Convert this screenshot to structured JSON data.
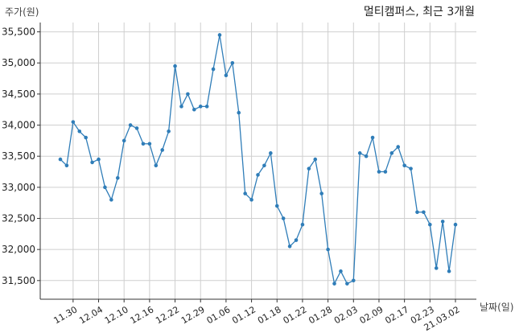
{
  "chart_data": {
    "type": "line",
    "title": "멀티캠퍼스, 최근 3개월",
    "ylabel": "주가(원)",
    "xlabel": "날짜(일)",
    "ylim": [
      31200,
      35650
    ],
    "yticks": [
      31500,
      32000,
      32500,
      33000,
      33500,
      34000,
      34500,
      35000,
      35500
    ],
    "ytick_labels": [
      "31,500",
      "32,000",
      "32,500",
      "33,000",
      "33,500",
      "34,000",
      "34,500",
      "35,000",
      "35,500"
    ],
    "xtick_labels": [
      "11.30",
      "12.04",
      "12.10",
      "12.16",
      "12.22",
      "12.29",
      "01.06",
      "01.12",
      "01.18",
      "01.22",
      "01.28",
      "02.03",
      "02.09",
      "02.17",
      "02.23",
      "21.03.02"
    ],
    "xtick_index": [
      2,
      6,
      10,
      14,
      18,
      22,
      26,
      30,
      34,
      38,
      42,
      46,
      50,
      54,
      58,
      62
    ],
    "grid": true,
    "series": [
      {
        "name": "",
        "color": "#2f7db8",
        "values": [
          33450,
          33350,
          34050,
          33900,
          33800,
          33400,
          33450,
          33000,
          32800,
          33150,
          33750,
          34000,
          33950,
          33700,
          33700,
          33350,
          33600,
          33900,
          34950,
          34300,
          34500,
          34250,
          34300,
          34300,
          34900,
          35450,
          34800,
          35000,
          34200,
          32900,
          32800,
          33200,
          33350,
          33550,
          32700,
          32500,
          32050,
          32150,
          32400,
          33300,
          33450,
          32900,
          32000,
          31450,
          31650,
          31450,
          31500,
          33550,
          33500,
          33800,
          33250,
          33250,
          33550,
          33650,
          33350,
          33300,
          32600,
          32600,
          32400,
          31700,
          32450,
          31650,
          32400
        ]
      }
    ]
  }
}
